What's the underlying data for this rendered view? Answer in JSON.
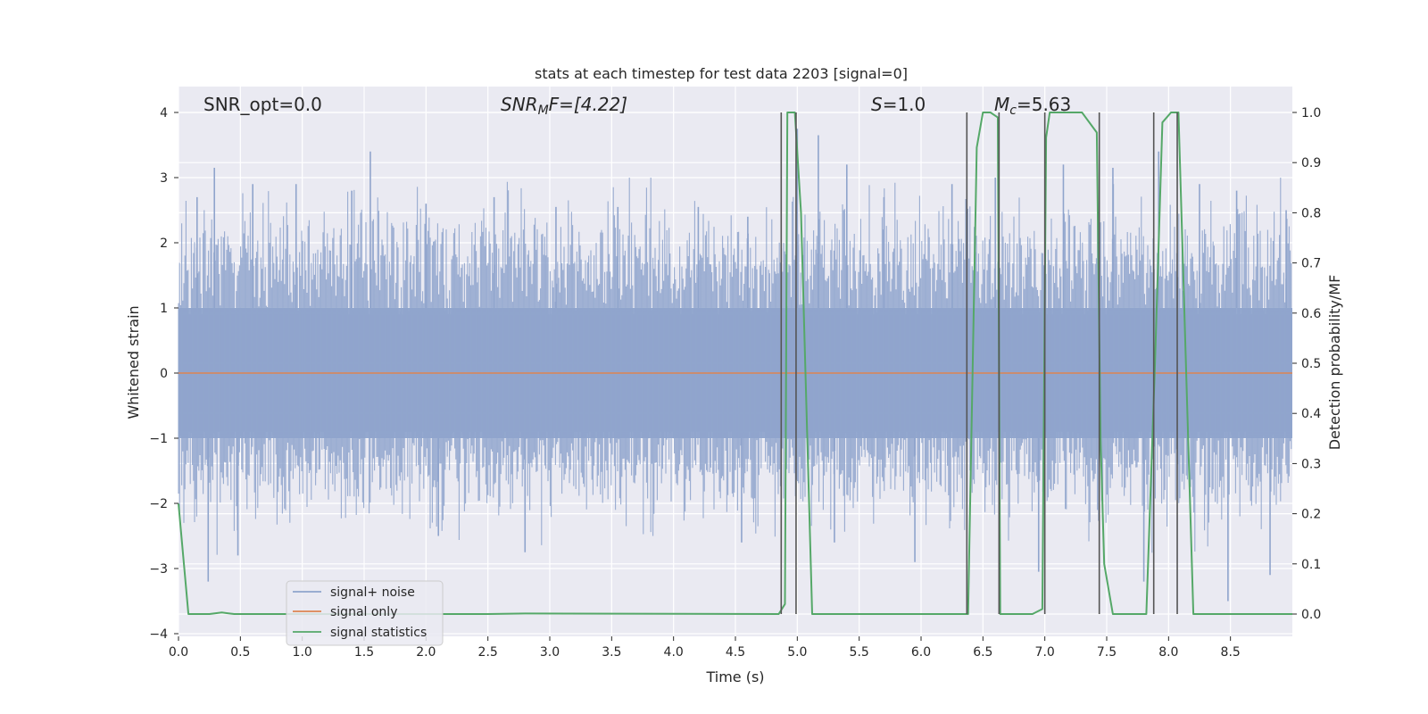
{
  "chart_data": {
    "type": "line",
    "title": "stats at each timestep for test data 2203 [signal=0]",
    "xlabel": "Time (s)",
    "ylabel": "Whitened strain",
    "y2label": "Detection probability/MF",
    "xlim": [
      0.0,
      9.0
    ],
    "ylim": [
      -4.2,
      4.4
    ],
    "y2lim": [
      -0.05,
      1.05
    ],
    "xticks": [
      0.0,
      0.5,
      1.0,
      1.5,
      2.0,
      2.5,
      3.0,
      3.5,
      4.0,
      4.5,
      5.0,
      5.5,
      6.0,
      6.5,
      7.0,
      7.5,
      8.0,
      8.5
    ],
    "xtick_labels": [
      "0.0",
      "0.5",
      "1.0",
      "1.5",
      "2.0",
      "2.5",
      "3.0",
      "3.5",
      "4.0",
      "4.5",
      "5.0",
      "5.5",
      "6.0",
      "6.5",
      "7.0",
      "7.5",
      "8.0",
      "8.5"
    ],
    "yticks": [
      4,
      3,
      2,
      1,
      0,
      -1,
      -2,
      -3,
      -4
    ],
    "ytick_labels": [
      "4",
      "3",
      "2",
      "1",
      "0",
      "−1",
      "−2",
      "−3",
      "−4"
    ],
    "y2ticks": [
      1.0,
      0.9,
      0.8,
      0.7,
      0.6,
      0.5,
      0.4,
      0.3,
      0.2,
      0.1,
      0.0
    ],
    "y2tick_labels": [
      "1.0",
      "0.9",
      "0.8",
      "0.7",
      "0.6",
      "0.5",
      "0.4",
      "0.3",
      "0.2",
      "0.1",
      "0.0"
    ],
    "grid": true,
    "annotations": {
      "snr_opt": "SNR_opt=0.0",
      "snr_mf_main": "SNR",
      "snr_mf_sub": "M",
      "snr_mf_rest": "F=[4.22]",
      "s_main": "S",
      "s_rest": "=1.0",
      "mc_main": "M",
      "mc_sub": "c",
      "mc_rest": "=5.63"
    },
    "legend": {
      "position": "lower-left",
      "entries": [
        {
          "label": "signal+ noise",
          "color": "#8fa4cc"
        },
        {
          "label": "signal only",
          "color": "#dd8452"
        },
        {
          "label": "signal statistics",
          "color": "#55a868"
        }
      ]
    },
    "series": [
      {
        "name": "signal+ noise",
        "color": "#8fa4cc",
        "description": "whitened noise band, typical envelope",
        "envelope_upper": 1.7,
        "envelope_lower": -1.4,
        "peaks": [
          {
            "x": 0.15,
            "y": 2.7
          },
          {
            "x": 0.29,
            "y": 3.15
          },
          {
            "x": 0.6,
            "y": 2.9
          },
          {
            "x": 0.95,
            "y": 2.9
          },
          {
            "x": 1.4,
            "y": 2.8
          },
          {
            "x": 1.55,
            "y": 3.4
          },
          {
            "x": 2.0,
            "y": 2.6
          },
          {
            "x": 2.55,
            "y": 2.7
          },
          {
            "x": 3.05,
            "y": 2.55
          },
          {
            "x": 3.55,
            "y": 2.55
          },
          {
            "x": 4.2,
            "y": 2.55
          },
          {
            "x": 4.6,
            "y": 2.4
          },
          {
            "x": 5.0,
            "y": 3.75
          },
          {
            "x": 5.17,
            "y": 3.65
          },
          {
            "x": 5.4,
            "y": 3.2
          },
          {
            "x": 5.7,
            "y": 2.7
          },
          {
            "x": 6.25,
            "y": 2.9
          },
          {
            "x": 6.6,
            "y": 3.0
          },
          {
            "x": 7.15,
            "y": 3.2
          },
          {
            "x": 7.55,
            "y": 3.15
          },
          {
            "x": 7.92,
            "y": 3.4
          },
          {
            "x": 8.25,
            "y": 2.9
          },
          {
            "x": 8.55,
            "y": 2.8
          },
          {
            "x": 8.95,
            "y": 2.5
          }
        ],
        "troughs": [
          {
            "x": 0.24,
            "y": -3.2
          },
          {
            "x": 0.48,
            "y": -2.8
          },
          {
            "x": 2.1,
            "y": -2.5
          },
          {
            "x": 2.8,
            "y": -2.75
          },
          {
            "x": 4.55,
            "y": -2.6
          },
          {
            "x": 5.3,
            "y": -2.6
          },
          {
            "x": 5.95,
            "y": -2.9
          },
          {
            "x": 6.95,
            "y": -3.05
          },
          {
            "x": 7.8,
            "y": -3.2
          },
          {
            "x": 8.48,
            "y": -3.5
          },
          {
            "x": 8.82,
            "y": -3.1
          }
        ]
      },
      {
        "name": "signal only",
        "color": "#dd8452",
        "x": [
          0.0,
          9.0
        ],
        "y": [
          0.0,
          0.0
        ]
      },
      {
        "name": "signal statistics",
        "color": "#55a868",
        "axis": "right",
        "x": [
          0.0,
          0.08,
          0.25,
          0.35,
          0.45,
          1.0,
          2.5,
          2.8,
          4.85,
          4.9,
          4.92,
          4.98,
          5.03,
          5.12,
          5.2,
          6.38,
          6.45,
          6.5,
          6.56,
          6.62,
          6.64,
          6.68,
          6.9,
          6.98,
          7.01,
          7.04,
          7.07,
          7.3,
          7.42,
          7.45,
          7.48,
          7.55,
          7.82,
          7.89,
          7.95,
          8.02,
          8.08,
          8.2,
          9.0
        ],
        "y": [
          0.22,
          0.0,
          0.0,
          0.003,
          0.0,
          0.0,
          0.0,
          0.001,
          0.0,
          0.02,
          1.0,
          1.0,
          0.8,
          0.0,
          0.0,
          0.0,
          0.93,
          1.0,
          1.0,
          0.99,
          0.0,
          0.0,
          0.0,
          0.01,
          0.95,
          1.0,
          1.0,
          1.0,
          0.96,
          0.35,
          0.1,
          0.0,
          0.0,
          0.5,
          0.98,
          1.0,
          1.0,
          0.0,
          0.0
        ]
      }
    ],
    "vertical_markers": [
      4.87,
      4.99,
      6.37,
      6.63,
      7.0,
      7.44,
      7.88,
      8.07
    ],
    "vertical_marker_color": "#555555"
  }
}
